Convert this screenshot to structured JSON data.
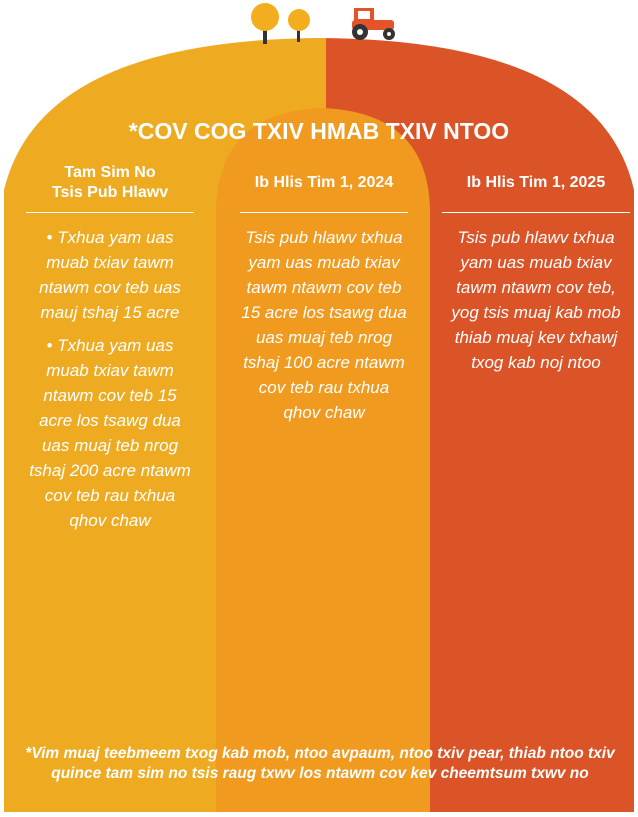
{
  "title": "*COV COG TXIV HMAB TXIV NTOO",
  "columns": [
    {
      "heading": "Tam Sim No\nTsis Pub Hlawv",
      "items": [
        "• Txhua yam uas muab txiav tawm ntawm cov teb uas mauj tshaj 15 acre",
        "• Txhua yam uas muab txiav tawm ntawm cov teb 15 acre los tsawg dua uas muaj teb nrog tshaj 200 acre ntawm cov teb rau txhua qhov chaw"
      ]
    },
    {
      "heading": "Ib Hlis Tim 1, 2024",
      "items": [
        "Tsis pub hlawv txhua yam uas muab txiav tawm ntawm cov teb 15 acre los tsawg dua uas  muaj teb nrog tshaj 100 acre ntawm cov teb rau txhua qhov chaw"
      ]
    },
    {
      "heading": "Ib Hlis Tim 1, 2025",
      "items": [
        "Tsis pub hlawv txhua yam uas muab txiav tawm ntawm cov teb, yog tsis muaj kab mob thiab muaj kev txhawj txog kab noj ntoo"
      ]
    }
  ],
  "footnote": "*Vim muaj teebmeem txog kab mob, ntoo avpaum, ntoo txiv pear, thiab ntoo txiv quince tam sim no tsis raug txwv los ntawm cov kev cheemtsum txwv no"
}
